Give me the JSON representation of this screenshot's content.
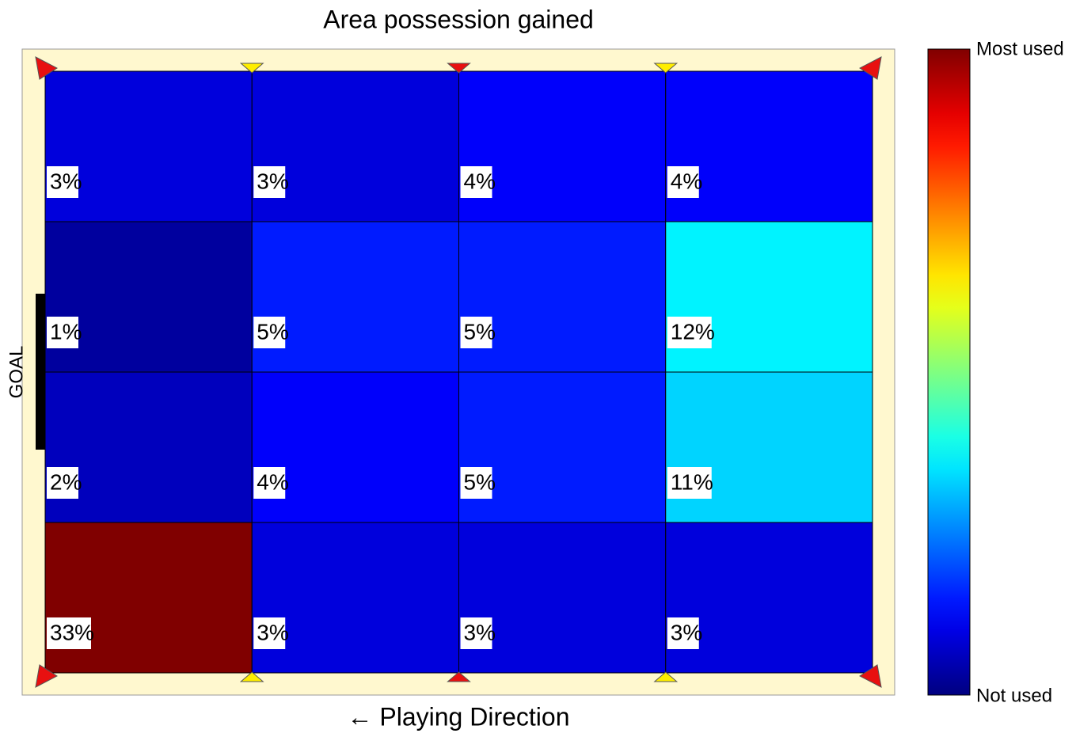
{
  "chart_data": {
    "type": "heatmap",
    "title": "Area possession gained",
    "goal_label": "GOAL",
    "x_label": "← Playing Direction",
    "colorbar_labels": {
      "max": "Most used",
      "min": "Not used"
    },
    "colormap": "jet",
    "values": [
      [
        3,
        3,
        4,
        4
      ],
      [
        1,
        5,
        5,
        12
      ],
      [
        2,
        4,
        5,
        11
      ],
      [
        33,
        3,
        3,
        3
      ]
    ],
    "value_labels": [
      [
        "3%",
        "3%",
        "4%",
        "4%"
      ],
      [
        "1%",
        "5%",
        "5%",
        "12%"
      ],
      [
        "2%",
        "4%",
        "5%",
        "11%"
      ],
      [
        "33%",
        "3%",
        "3%",
        "3%"
      ]
    ]
  }
}
